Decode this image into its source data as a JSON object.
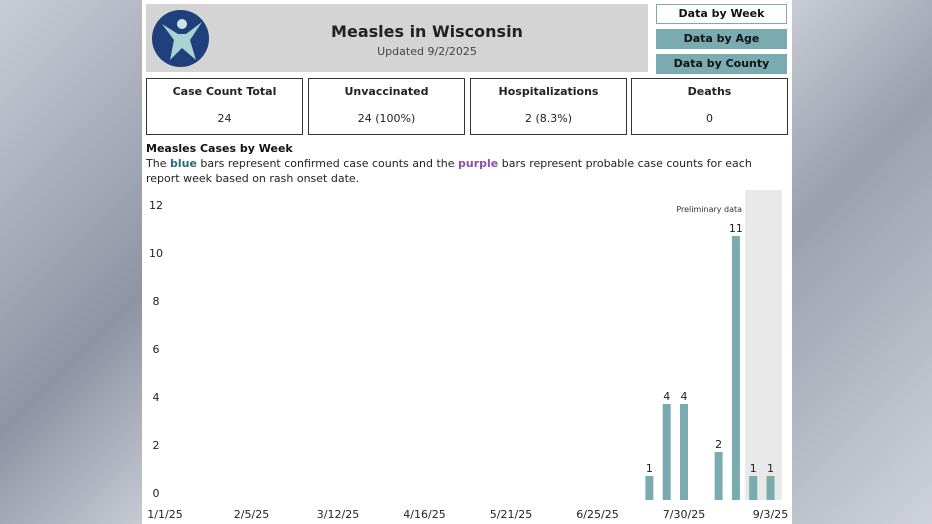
{
  "header": {
    "title": "Measles in Wisconsin",
    "updated": "Updated 9/2/2025"
  },
  "nav": [
    {
      "label": "Data by Week",
      "active": true
    },
    {
      "label": "Data by Age"
    },
    {
      "label": "Data by County"
    }
  ],
  "cards": [
    {
      "label": "Case Count Total",
      "value": "24"
    },
    {
      "label": "Unvaccinated",
      "value": "24 (100%)"
    },
    {
      "label": "Hospitalizations",
      "value": "2 (8.3%)"
    },
    {
      "label": "Deaths",
      "value": "0"
    }
  ],
  "section": {
    "title": "Measles Cases by Week",
    "desc_pre": "The ",
    "blue": "blue",
    "desc_mid": " bars represent confirmed case counts and the ",
    "purple": "purple",
    "desc_post": " bars represent probable case counts for each report week based on rash onset date."
  },
  "colors": {
    "bar": "#7aabb1",
    "prelim": "#e8e8e8"
  },
  "chart_data": {
    "type": "bar",
    "title": "Measles Cases by Week",
    "annotation": "Preliminary data",
    "yticks": [
      0,
      2,
      4,
      6,
      8,
      10,
      12
    ],
    "ylim": [
      0,
      12.5
    ],
    "xticks": [
      "1/1/25",
      "2/5/25",
      "3/12/25",
      "4/16/25",
      "5/21/25",
      "6/25/25",
      "7/30/25",
      "9/3/25"
    ],
    "xtick_weeks": [
      0,
      5,
      10,
      15,
      20,
      25,
      30,
      35
    ],
    "bars": [
      {
        "week": "7/16/25",
        "index": 28,
        "value": 1
      },
      {
        "week": "7/23/25",
        "index": 29,
        "value": 4
      },
      {
        "week": "7/30/25",
        "index": 30,
        "value": 4
      },
      {
        "week": "8/13/25",
        "index": 32,
        "value": 2
      },
      {
        "week": "8/20/25",
        "index": 33,
        "value": 11
      },
      {
        "week": "8/27/25",
        "index": 34,
        "value": 1
      },
      {
        "week": "9/3/25",
        "index": 35,
        "value": 1
      }
    ],
    "preliminary_weeks": [
      34,
      35
    ]
  }
}
